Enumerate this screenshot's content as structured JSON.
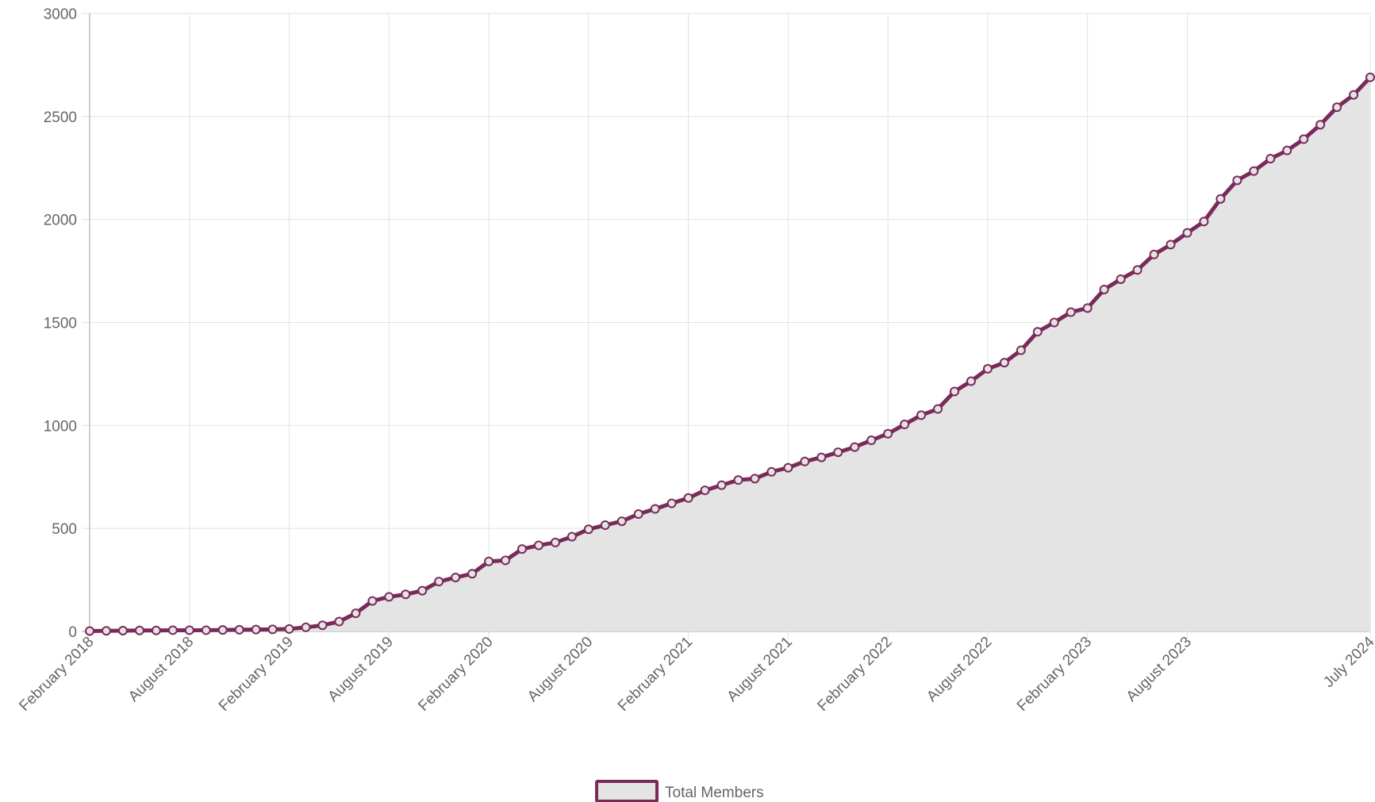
{
  "chart_data": {
    "type": "area",
    "title": "",
    "xlabel": "",
    "ylabel": "",
    "ylim": [
      0,
      3000
    ],
    "yticks": [
      0,
      500,
      1000,
      1500,
      2000,
      2500,
      3000
    ],
    "xlim": [
      "2018-02",
      "2024-07"
    ],
    "xticks": [
      {
        "date": "2018-02",
        "label": "February 2018"
      },
      {
        "date": "2018-08",
        "label": "August 2018"
      },
      {
        "date": "2019-02",
        "label": "February 2019"
      },
      {
        "date": "2019-08",
        "label": "August 2019"
      },
      {
        "date": "2020-02",
        "label": "February 2020"
      },
      {
        "date": "2020-08",
        "label": "August 2020"
      },
      {
        "date": "2021-02",
        "label": "February 2021"
      },
      {
        "date": "2021-08",
        "label": "August 2021"
      },
      {
        "date": "2022-02",
        "label": "February 2022"
      },
      {
        "date": "2022-08",
        "label": "August 2022"
      },
      {
        "date": "2023-02",
        "label": "February 2023"
      },
      {
        "date": "2023-08",
        "label": "August 2023"
      },
      {
        "date": "2024-07",
        "label": "July 2024"
      }
    ],
    "grid": true,
    "legend_position": "bottom",
    "colors": {
      "line": "#7a2a5a",
      "fill": "#e4e4e4",
      "grid": "#e2e2e2",
      "axis": "#bdbdbd"
    },
    "series": [
      {
        "name": "Total Members",
        "x": [
          "2018-02",
          "2018-03",
          "2018-04",
          "2018-05",
          "2018-06",
          "2018-07",
          "2018-08",
          "2018-09",
          "2018-10",
          "2018-11",
          "2018-12",
          "2019-01",
          "2019-02",
          "2019-03",
          "2019-04",
          "2019-05",
          "2019-06",
          "2019-07",
          "2019-08",
          "2019-09",
          "2019-10",
          "2019-11",
          "2019-12",
          "2020-01",
          "2020-02",
          "2020-03",
          "2020-04",
          "2020-05",
          "2020-06",
          "2020-07",
          "2020-08",
          "2020-09",
          "2020-10",
          "2020-11",
          "2020-12",
          "2021-01",
          "2021-02",
          "2021-03",
          "2021-04",
          "2021-05",
          "2021-06",
          "2021-07",
          "2021-08",
          "2021-09",
          "2021-10",
          "2021-11",
          "2021-12",
          "2022-01",
          "2022-02",
          "2022-03",
          "2022-04",
          "2022-05",
          "2022-06",
          "2022-07",
          "2022-08",
          "2022-09",
          "2022-10",
          "2022-11",
          "2022-12",
          "2023-01",
          "2023-02",
          "2023-03",
          "2023-04",
          "2023-05",
          "2023-06",
          "2023-07",
          "2023-08",
          "2023-09",
          "2023-10",
          "2023-11",
          "2023-12",
          "2024-01",
          "2024-02",
          "2024-03",
          "2024-04",
          "2024-05",
          "2024-06",
          "2024-07"
        ],
        "values": [
          2,
          3,
          4,
          5,
          5,
          6,
          6,
          6,
          7,
          8,
          9,
          10,
          12,
          20,
          30,
          48,
          88,
          148,
          168,
          180,
          198,
          242,
          262,
          280,
          340,
          345,
          400,
          418,
          432,
          460,
          496,
          516,
          535,
          570,
          595,
          622,
          648,
          685,
          710,
          735,
          742,
          775,
          795,
          825,
          845,
          870,
          895,
          928,
          960,
          1005,
          1050,
          1080,
          1165,
          1215,
          1275,
          1305,
          1365,
          1455,
          1500,
          1550,
          1570,
          1660,
          1710,
          1755,
          1830,
          1878,
          1935,
          1990,
          2100,
          2190,
          2235,
          2295,
          2335,
          2390,
          2460,
          2545,
          2605,
          2690
        ]
      }
    ]
  },
  "legend": {
    "label": "Total Members"
  }
}
